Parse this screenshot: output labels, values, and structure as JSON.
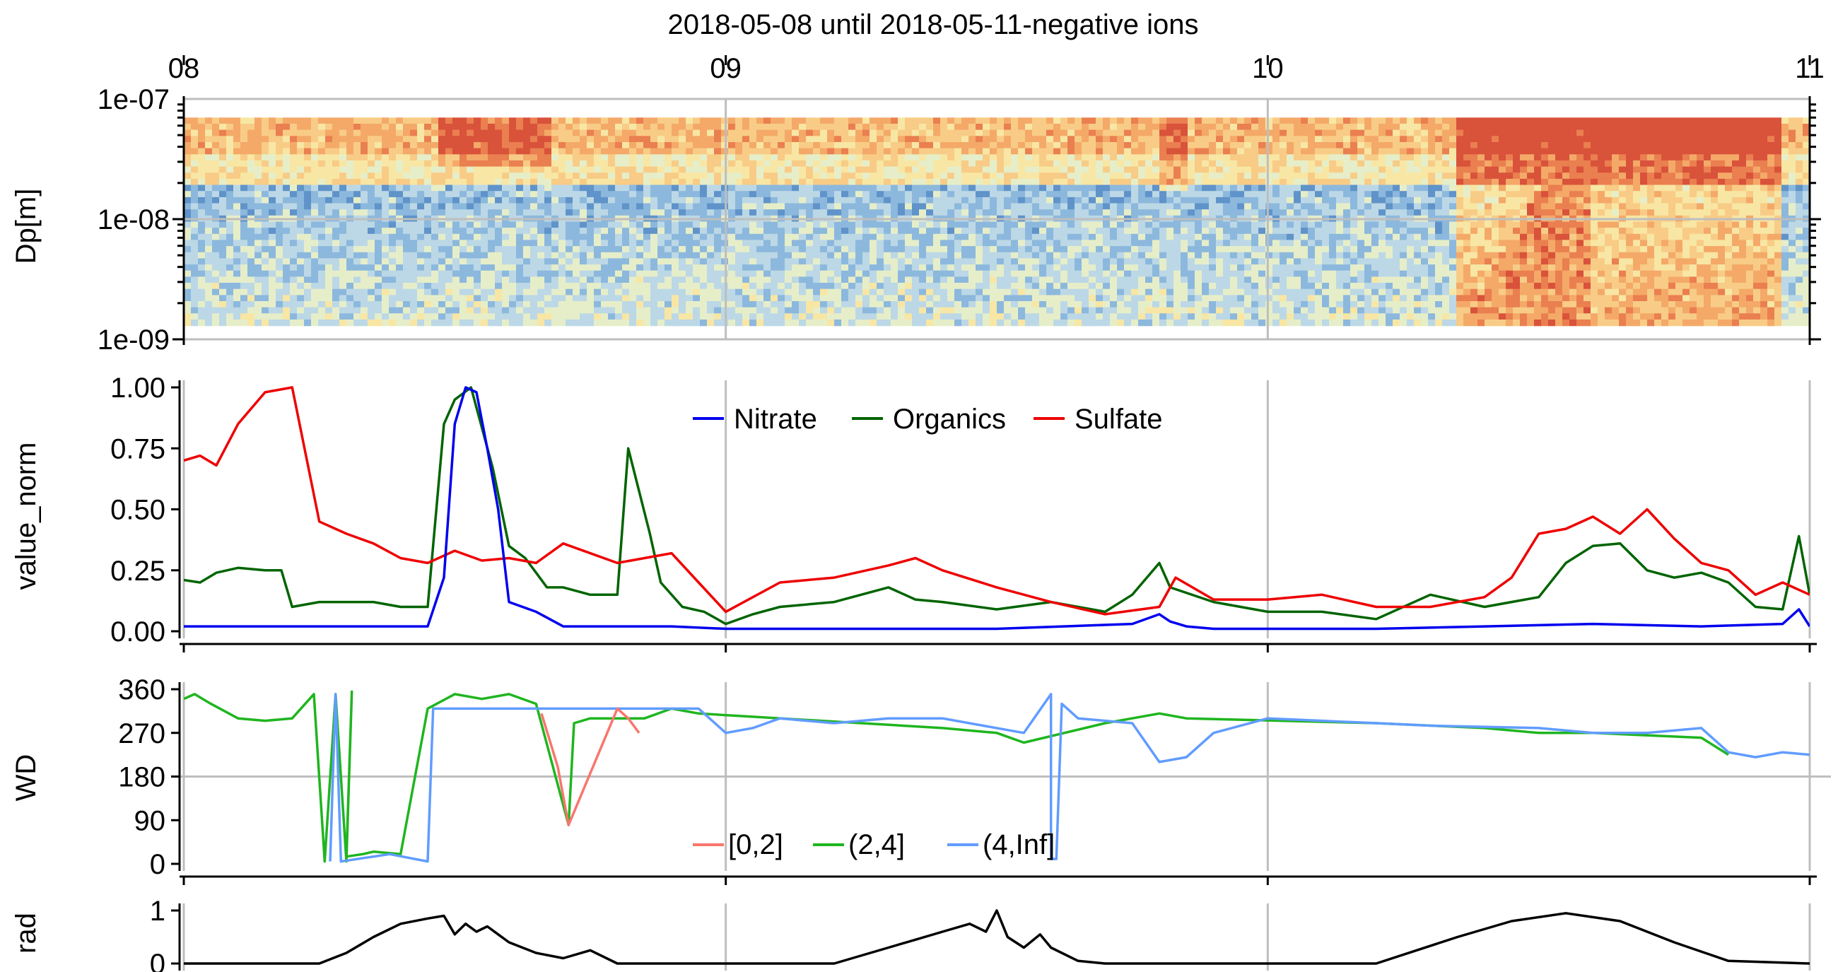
{
  "title": "2018-05-08 until 2018-05-11-negative ions",
  "colors": {
    "nitrate": "#0000ee",
    "organics": "#006400",
    "sulfate": "#ee0000",
    "ws_low": "#f8766d",
    "ws_mid": "#1fb51f",
    "ws_high": "#619cff",
    "rad": "#000000",
    "grid": "#bebebe"
  },
  "chart_data": [
    {
      "type": "heatmap",
      "name": "size-distribution",
      "ylabel": "Dp[m]",
      "yscale": "log",
      "ylim": [
        1e-09,
        1e-07
      ],
      "y_tick_labels": [
        "1e-09",
        "1e-08",
        "1e-07"
      ],
      "x_tick_labels": [
        "08",
        "09",
        "10",
        "11"
      ],
      "xlim": [
        0,
        3
      ],
      "grid": true,
      "features": [
        {
          "x_start": 0.47,
          "x_end": 0.68,
          "dp_min": 3e-08,
          "dp_max": 7e-08,
          "level": "high"
        },
        {
          "x_start": 1.8,
          "x_end": 1.85,
          "dp_min": 2e-08,
          "dp_max": 7e-08,
          "level": "high"
        },
        {
          "x_start": 2.35,
          "x_end": 2.95,
          "dp_min": 1.3e-09,
          "dp_max": 7e-08,
          "level": "very-high"
        }
      ]
    },
    {
      "type": "line",
      "name": "value-norm",
      "ylabel": "value_norm",
      "ylim": [
        0,
        1
      ],
      "y_tick_labels": [
        "0.00",
        "0.25",
        "0.50",
        "0.75",
        "1.00"
      ],
      "xlim": [
        0,
        3
      ],
      "grid": true,
      "legend": "top-center",
      "series": [
        {
          "name": "Nitrate",
          "x": [
            0,
            0.2,
            0.45,
            0.48,
            0.5,
            0.52,
            0.54,
            0.56,
            0.58,
            0.6,
            0.65,
            0.7,
            0.8,
            0.9,
            1.0,
            1.2,
            1.5,
            1.75,
            1.8,
            1.82,
            1.85,
            1.9,
            2.0,
            2.2,
            2.4,
            2.6,
            2.8,
            2.95,
            2.98,
            3.0
          ],
          "y": [
            0.02,
            0.02,
            0.02,
            0.22,
            0.85,
            1.0,
            0.98,
            0.75,
            0.5,
            0.12,
            0.08,
            0.02,
            0.02,
            0.02,
            0.01,
            0.01,
            0.01,
            0.03,
            0.07,
            0.04,
            0.02,
            0.01,
            0.01,
            0.01,
            0.02,
            0.03,
            0.02,
            0.03,
            0.09,
            0.02
          ]
        },
        {
          "name": "Organics",
          "x": [
            0,
            0.03,
            0.06,
            0.1,
            0.15,
            0.18,
            0.2,
            0.25,
            0.3,
            0.35,
            0.4,
            0.45,
            0.48,
            0.5,
            0.53,
            0.57,
            0.6,
            0.63,
            0.67,
            0.7,
            0.75,
            0.8,
            0.82,
            0.86,
            0.88,
            0.92,
            0.96,
            1.0,
            1.05,
            1.1,
            1.2,
            1.3,
            1.35,
            1.4,
            1.5,
            1.6,
            1.7,
            1.75,
            1.8,
            1.82,
            1.9,
            2.0,
            2.1,
            2.2,
            2.3,
            2.4,
            2.5,
            2.55,
            2.6,
            2.65,
            2.7,
            2.75,
            2.8,
            2.85,
            2.9,
            2.95,
            2.98,
            3.0
          ],
          "y": [
            0.21,
            0.2,
            0.24,
            0.26,
            0.25,
            0.25,
            0.1,
            0.12,
            0.12,
            0.12,
            0.1,
            0.1,
            0.85,
            0.95,
            1.0,
            0.67,
            0.35,
            0.3,
            0.18,
            0.18,
            0.15,
            0.15,
            0.75,
            0.4,
            0.2,
            0.1,
            0.08,
            0.03,
            0.07,
            0.1,
            0.12,
            0.18,
            0.13,
            0.12,
            0.09,
            0.12,
            0.08,
            0.15,
            0.28,
            0.18,
            0.12,
            0.08,
            0.08,
            0.05,
            0.15,
            0.1,
            0.14,
            0.28,
            0.35,
            0.36,
            0.25,
            0.22,
            0.24,
            0.2,
            0.1,
            0.09,
            0.39,
            0.15
          ]
        },
        {
          "name": "Sulfate",
          "x": [
            0,
            0.03,
            0.06,
            0.1,
            0.15,
            0.2,
            0.25,
            0.3,
            0.35,
            0.4,
            0.45,
            0.5,
            0.55,
            0.6,
            0.65,
            0.7,
            0.8,
            0.9,
            0.95,
            1.0,
            1.1,
            1.2,
            1.3,
            1.35,
            1.4,
            1.5,
            1.6,
            1.7,
            1.8,
            1.83,
            1.9,
            2.0,
            2.1,
            2.2,
            2.3,
            2.4,
            2.45,
            2.5,
            2.55,
            2.6,
            2.65,
            2.7,
            2.75,
            2.8,
            2.85,
            2.9,
            2.95,
            3.0
          ],
          "y": [
            0.7,
            0.72,
            0.68,
            0.85,
            0.98,
            1.0,
            0.45,
            0.4,
            0.36,
            0.3,
            0.28,
            0.33,
            0.29,
            0.3,
            0.28,
            0.36,
            0.28,
            0.32,
            0.2,
            0.08,
            0.2,
            0.22,
            0.27,
            0.3,
            0.25,
            0.18,
            0.12,
            0.07,
            0.1,
            0.22,
            0.13,
            0.13,
            0.15,
            0.1,
            0.1,
            0.14,
            0.22,
            0.4,
            0.42,
            0.47,
            0.4,
            0.5,
            0.38,
            0.28,
            0.25,
            0.15,
            0.2,
            0.15
          ]
        }
      ]
    },
    {
      "type": "line",
      "name": "wind-direction",
      "ylabel": "WD",
      "ylim": [
        0,
        360
      ],
      "y_tick_labels": [
        "0",
        "90",
        "180",
        "270",
        "360"
      ],
      "xlim": [
        0,
        3
      ],
      "grid": true,
      "legend": "bottom-center",
      "series": [
        {
          "name": "[0,2]",
          "x": [
            0.66,
            0.69,
            0.71,
            0.8,
            0.82,
            0.84
          ],
          "y": [
            310,
            200,
            80,
            320,
            300,
            270
          ]
        },
        {
          "name": "(2,4]",
          "x": [
            0,
            0.02,
            0.05,
            0.1,
            0.15,
            0.2,
            0.24,
            0.26,
            0.28,
            0.3,
            0.31,
            0.3,
            0.33,
            0.35,
            0.4,
            0.45,
            0.5,
            0.55,
            0.6,
            0.65,
            0.71,
            0.72,
            0.75,
            0.85,
            0.9,
            0.95,
            1.4,
            1.5,
            1.55,
            1.7,
            1.8,
            1.85,
            2.2,
            2.4,
            2.5,
            2.6,
            2.8,
            2.85
          ],
          "y": [
            340,
            350,
            330,
            300,
            295,
            300,
            350,
            5,
            350,
            5,
            355,
            15,
            20,
            25,
            20,
            320,
            350,
            340,
            350,
            330,
            80,
            290,
            300,
            300,
            320,
            310,
            280,
            270,
            250,
            290,
            310,
            300,
            290,
            280,
            270,
            270,
            260,
            225
          ]
        },
        {
          "name": "(4,Inf]",
          "x": [
            0.27,
            0.28,
            0.29,
            0.38,
            0.45,
            0.46,
            0.95,
            1.0,
            1.05,
            1.1,
            1.2,
            1.3,
            1.4,
            1.55,
            1.6,
            1.6,
            1.61,
            1.62,
            1.63,
            1.65,
            1.75,
            1.8,
            1.85,
            1.9,
            2.0,
            2.1,
            2.2,
            2.3,
            2.5,
            2.6,
            2.7,
            2.8,
            2.85,
            2.9,
            2.95,
            3.0
          ],
          "y": [
            5,
            350,
            5,
            20,
            5,
            320,
            320,
            270,
            280,
            300,
            290,
            300,
            300,
            270,
            350,
            10,
            10,
            330,
            320,
            300,
            290,
            210,
            220,
            270,
            300,
            295,
            290,
            285,
            280,
            270,
            270,
            280,
            230,
            220,
            230,
            225
          ]
        }
      ]
    },
    {
      "type": "area",
      "name": "radiation",
      "ylabel": "rad",
      "ylim": [
        0,
        1
      ],
      "y_tick_labels": [
        "0",
        "1"
      ],
      "xlim": [
        0,
        3
      ],
      "grid": true,
      "series": [
        {
          "name": "",
          "x": [
            0,
            0.25,
            0.3,
            0.35,
            0.4,
            0.45,
            0.48,
            0.5,
            0.52,
            0.54,
            0.56,
            0.58,
            0.6,
            0.65,
            0.7,
            0.75,
            0.8,
            1.2,
            1.3,
            1.35,
            1.4,
            1.45,
            1.48,
            1.5,
            1.52,
            1.55,
            1.58,
            1.6,
            1.65,
            1.7,
            2.2,
            2.35,
            2.45,
            2.55,
            2.65,
            2.75,
            2.85,
            3.0
          ],
          "y": [
            0,
            0,
            0.2,
            0.5,
            0.75,
            0.85,
            0.9,
            0.55,
            0.75,
            0.6,
            0.7,
            0.55,
            0.4,
            0.2,
            0.1,
            0.25,
            0,
            0,
            0.3,
            0.45,
            0.6,
            0.75,
            0.6,
            1.0,
            0.5,
            0.3,
            0.55,
            0.3,
            0.05,
            0,
            0,
            0.5,
            0.8,
            0.95,
            0.8,
            0.4,
            0.05,
            0
          ]
        }
      ]
    }
  ]
}
